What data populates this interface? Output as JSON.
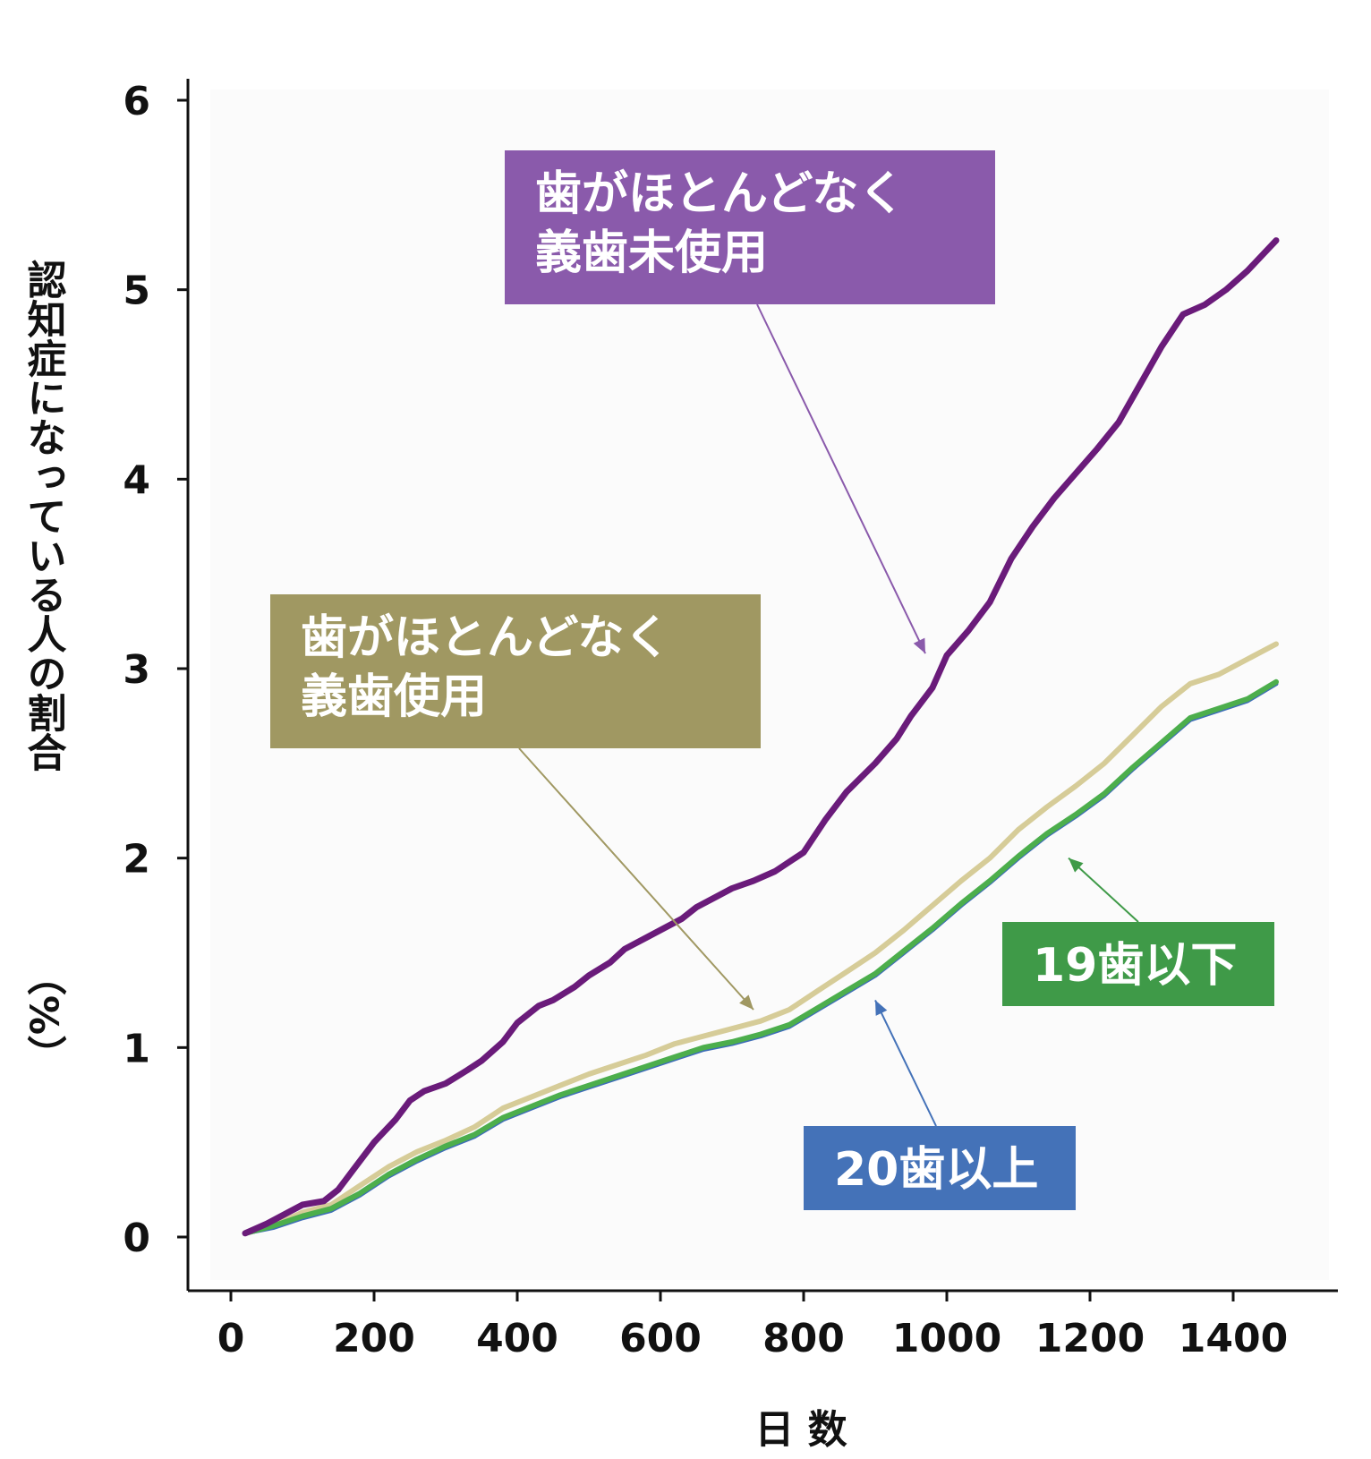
{
  "chart_data": {
    "type": "line",
    "xlabel": "日 数",
    "ylabel": "認知症になっている人の割合",
    "ylabel_unit": "（%）",
    "xlim": [
      0,
      1550
    ],
    "ylim": [
      0,
      6
    ],
    "x_ticks": [
      0,
      200,
      400,
      600,
      800,
      1000,
      1200,
      1400
    ],
    "y_ticks": [
      0,
      1,
      2,
      3,
      4,
      5,
      6
    ],
    "x_tick_labels": [
      "0",
      "200",
      "400",
      "600",
      "800",
      "1000",
      "1200",
      "1400"
    ],
    "y_tick_labels": [
      "0",
      "1",
      "2",
      "3",
      "4",
      "5",
      "6"
    ],
    "grid": false,
    "series": [
      {
        "name": "歯がほとんどなく義歯未使用",
        "color": "#6a1b7a",
        "x": [
          20,
          50,
          80,
          100,
          130,
          150,
          170,
          200,
          230,
          250,
          270,
          300,
          330,
          350,
          380,
          400,
          430,
          450,
          480,
          500,
          530,
          550,
          580,
          600,
          630,
          650,
          680,
          700,
          730,
          760,
          800,
          830,
          860,
          900,
          930,
          950,
          980,
          1000,
          1030,
          1060,
          1090,
          1120,
          1150,
          1180,
          1210,
          1240,
          1270,
          1300,
          1330,
          1360,
          1390,
          1420,
          1460
        ],
        "y": [
          0.02,
          0.07,
          0.13,
          0.17,
          0.19,
          0.25,
          0.35,
          0.5,
          0.62,
          0.72,
          0.77,
          0.81,
          0.88,
          0.93,
          1.03,
          1.13,
          1.22,
          1.25,
          1.32,
          1.38,
          1.45,
          1.52,
          1.58,
          1.62,
          1.68,
          1.74,
          1.8,
          1.84,
          1.88,
          1.93,
          2.03,
          2.2,
          2.35,
          2.5,
          2.63,
          2.75,
          2.9,
          3.07,
          3.2,
          3.35,
          3.58,
          3.75,
          3.9,
          4.03,
          4.16,
          4.3,
          4.5,
          4.7,
          4.87,
          4.92,
          5.0,
          5.1,
          5.26
        ]
      },
      {
        "name": "歯がほとんどなく義歯使用",
        "color": "#d6cc98",
        "x": [
          20,
          60,
          100,
          140,
          180,
          220,
          260,
          300,
          340,
          380,
          420,
          460,
          500,
          540,
          580,
          620,
          660,
          700,
          740,
          780,
          820,
          860,
          900,
          940,
          980,
          1020,
          1060,
          1100,
          1140,
          1180,
          1220,
          1260,
          1300,
          1340,
          1380,
          1420,
          1460
        ],
        "y": [
          0.02,
          0.06,
          0.13,
          0.17,
          0.27,
          0.37,
          0.45,
          0.51,
          0.58,
          0.68,
          0.74,
          0.8,
          0.86,
          0.91,
          0.96,
          1.02,
          1.06,
          1.1,
          1.14,
          1.2,
          1.3,
          1.4,
          1.5,
          1.62,
          1.75,
          1.88,
          2.0,
          2.15,
          2.27,
          2.38,
          2.5,
          2.65,
          2.8,
          2.92,
          2.97,
          3.05,
          3.13
        ]
      },
      {
        "name": "20歯以上",
        "color": "#3e6db8",
        "x": [
          20,
          60,
          100,
          140,
          180,
          220,
          260,
          300,
          340,
          380,
          420,
          460,
          500,
          540,
          580,
          620,
          660,
          700,
          740,
          780,
          820,
          860,
          900,
          940,
          980,
          1020,
          1060,
          1100,
          1140,
          1180,
          1220,
          1260,
          1300,
          1340,
          1380,
          1420,
          1460
        ],
        "y": [
          0.02,
          0.05,
          0.1,
          0.14,
          0.22,
          0.32,
          0.4,
          0.47,
          0.53,
          0.62,
          0.68,
          0.74,
          0.79,
          0.84,
          0.89,
          0.94,
          0.99,
          1.02,
          1.06,
          1.11,
          1.2,
          1.29,
          1.38,
          1.5,
          1.62,
          1.75,
          1.87,
          2.0,
          2.12,
          2.22,
          2.33,
          2.47,
          2.6,
          2.73,
          2.78,
          2.83,
          2.92
        ]
      },
      {
        "name": "19歯以下",
        "color": "#4cae4c",
        "x": [
          20,
          60,
          100,
          140,
          180,
          220,
          260,
          300,
          340,
          380,
          420,
          460,
          500,
          540,
          580,
          620,
          660,
          700,
          740,
          780,
          820,
          860,
          900,
          940,
          980,
          1020,
          1060,
          1100,
          1140,
          1180,
          1220,
          1260,
          1300,
          1340,
          1380,
          1420,
          1460
        ],
        "y": [
          0.02,
          0.06,
          0.11,
          0.15,
          0.23,
          0.33,
          0.41,
          0.48,
          0.54,
          0.63,
          0.69,
          0.75,
          0.8,
          0.85,
          0.9,
          0.95,
          1.0,
          1.03,
          1.07,
          1.12,
          1.21,
          1.3,
          1.39,
          1.51,
          1.63,
          1.76,
          1.88,
          2.01,
          2.13,
          2.23,
          2.34,
          2.48,
          2.61,
          2.74,
          2.79,
          2.84,
          2.93
        ]
      }
    ],
    "annotations": [
      {
        "lines": [
          "歯がほとんどなく",
          "義歯未使用"
        ],
        "color": "#8a5aab",
        "points_to_series": 0,
        "at_x": 970,
        "at_y": 3.08
      },
      {
        "lines": [
          "歯がほとんどなく",
          "義歯使用"
        ],
        "color": "#a09862",
        "points_to_series": 1,
        "at_x": 730,
        "at_y": 1.2
      },
      {
        "lines": [
          "19歯以下"
        ],
        "color": "#3f9a48",
        "points_to_series": 3,
        "at_x": 1170,
        "at_y": 2.0
      },
      {
        "lines": [
          "20歯以上"
        ],
        "color": "#4472b8",
        "points_to_series": 2,
        "at_x": 900,
        "at_y": 1.25
      }
    ]
  }
}
